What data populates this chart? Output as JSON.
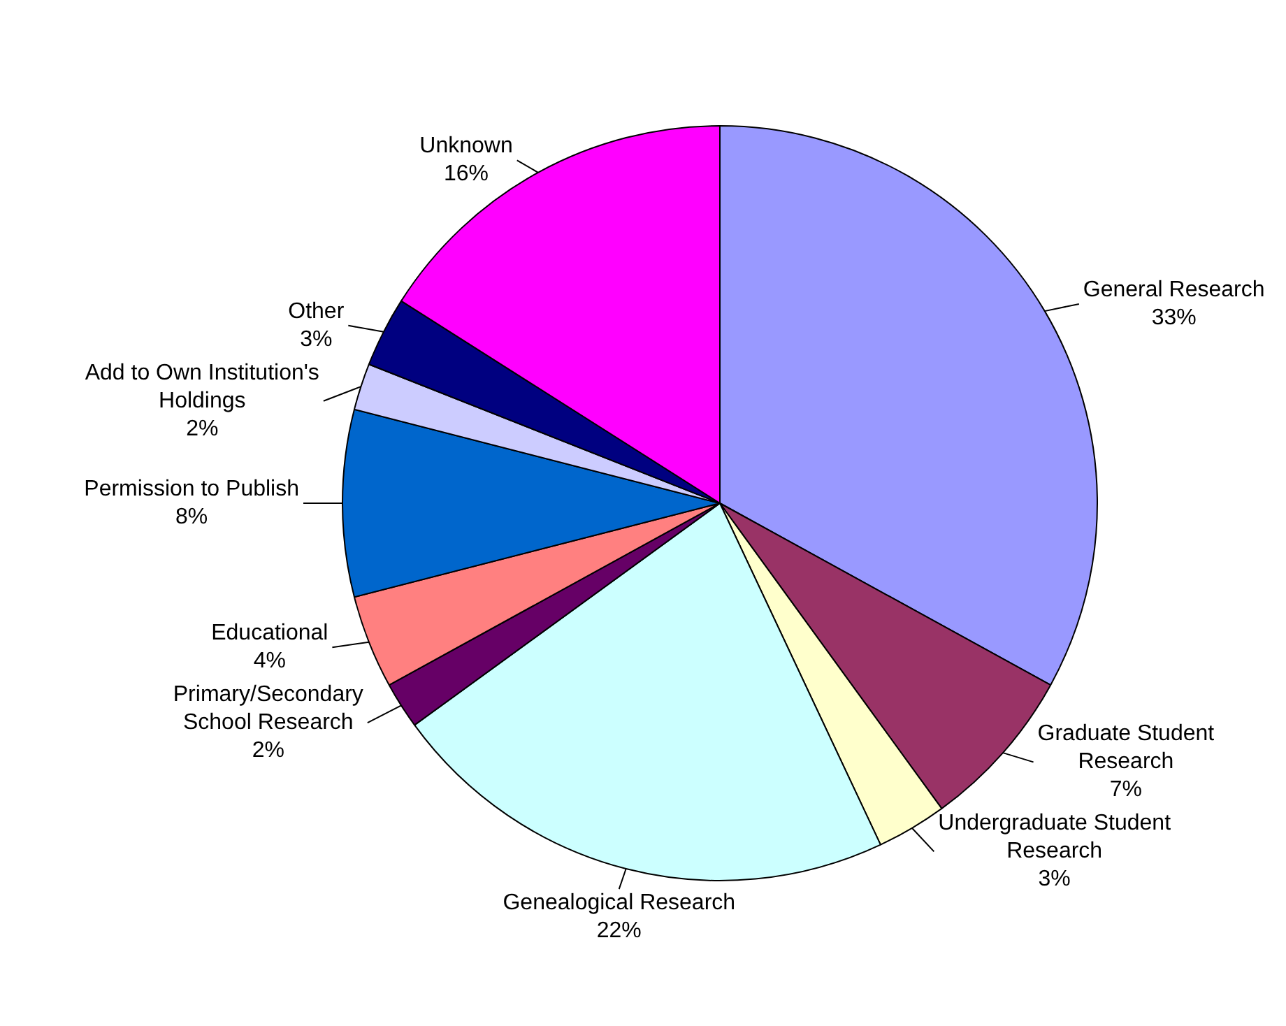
{
  "chart_data": {
    "type": "pie",
    "categories": [
      "General Research",
      "Graduate Student Research",
      "Undergraduate Student Research",
      "Genealogical Research",
      "Primary/Secondary School Research",
      "Educational",
      "Permission to Publish",
      "Add to Own Institution's Holdings",
      "Other",
      "Unknown"
    ],
    "values": [
      33,
      7,
      3,
      22,
      2,
      4,
      8,
      2,
      3,
      16
    ],
    "value_labels": [
      "33%",
      "7%",
      "3%",
      "22%",
      "2%",
      "4%",
      "8%",
      "2%",
      "3%",
      "16%"
    ],
    "colors": [
      "#9999ff",
      "#993366",
      "#ffffcc",
      "#ccffff",
      "#660066",
      "#ff8080",
      "#0066cc",
      "#ccccff",
      "#000080",
      "#ff00ff"
    ],
    "legend": false
  }
}
